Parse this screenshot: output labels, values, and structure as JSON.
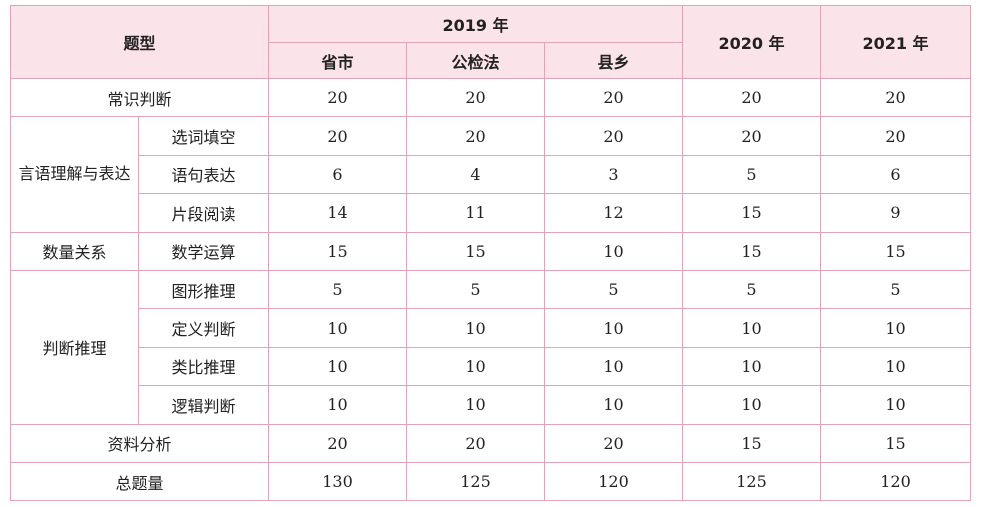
{
  "table": {
    "header": {
      "type_label": "题型",
      "year_2019": "2019 年",
      "sub_2019": [
        "省市",
        "公检法",
        "县乡"
      ],
      "year_2020": "2020 年",
      "year_2021": "2021 年"
    },
    "rows": [
      {
        "category": "常识判断",
        "subcategory": "",
        "values": [
          "20",
          "20",
          "20",
          "20",
          "20"
        ]
      },
      {
        "category": "言语理解与表达",
        "subcategory": "选词填空",
        "values": [
          "20",
          "20",
          "20",
          "20",
          "20"
        ]
      },
      {
        "category": "",
        "subcategory": "语句表达",
        "values": [
          "6",
          "4",
          "3",
          "5",
          "6"
        ]
      },
      {
        "category": "",
        "subcategory": "片段阅读",
        "values": [
          "14",
          "11",
          "12",
          "15",
          "9"
        ]
      },
      {
        "category": "数量关系",
        "subcategory": "数学运算",
        "values": [
          "15",
          "15",
          "10",
          "15",
          "15"
        ]
      },
      {
        "category": "判断推理",
        "subcategory": "图形推理",
        "values": [
          "5",
          "5",
          "5",
          "5",
          "5"
        ]
      },
      {
        "category": "",
        "subcategory": "定义判断",
        "values": [
          "10",
          "10",
          "10",
          "10",
          "10"
        ]
      },
      {
        "category": "",
        "subcategory": "类比推理",
        "values": [
          "10",
          "10",
          "10",
          "10",
          "10"
        ]
      },
      {
        "category": "",
        "subcategory": "逻辑判断",
        "values": [
          "10",
          "10",
          "10",
          "10",
          "10"
        ]
      },
      {
        "category": "资料分析",
        "subcategory": "",
        "values": [
          "20",
          "20",
          "20",
          "15",
          "15"
        ]
      },
      {
        "category": "总题量",
        "subcategory": "",
        "values": [
          "130",
          "125",
          "120",
          "125",
          "120"
        ]
      }
    ]
  },
  "colors": {
    "border": "#e3a3b6",
    "header_bg": "#fbe3ea"
  }
}
